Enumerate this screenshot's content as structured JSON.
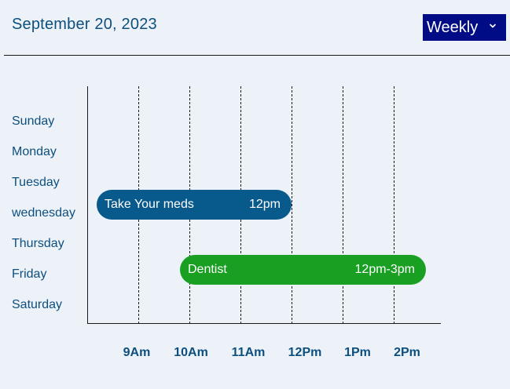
{
  "header": {
    "date": "September 20, 2023",
    "view_select": {
      "selected": "Weekly",
      "icon": "chevron-down-icon"
    }
  },
  "schedule": {
    "days": [
      "Sunday",
      "Monday",
      "Tuesday",
      "wednesday",
      "Thursday",
      "Friday",
      "Saturday"
    ],
    "times": [
      "9Am",
      "10Am",
      "11Am",
      "12Pm",
      "1Pm",
      "2Pm"
    ],
    "events": [
      {
        "title": "Take Your meds",
        "time": "12pm",
        "day": "wednesday",
        "color": "#08598c"
      },
      {
        "title": "Dentist",
        "time": "12pm-3pm",
        "day": "Friday",
        "color": "#199f22"
      }
    ]
  },
  "colors": {
    "background": "#edf2f8",
    "text": "#0d4f7e",
    "select_bg": "#000c85"
  }
}
